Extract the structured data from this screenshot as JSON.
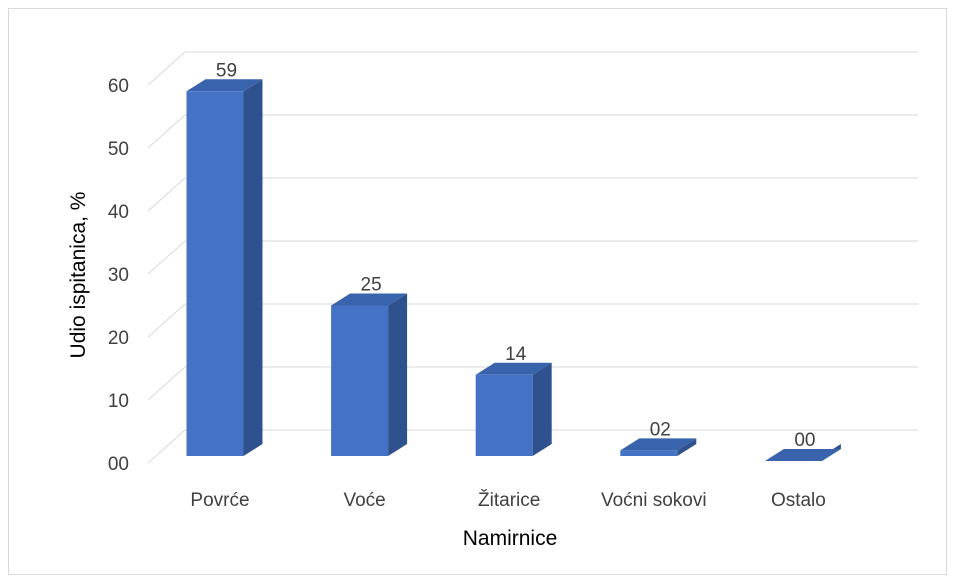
{
  "chart_data": {
    "type": "bar",
    "style": "3d-column",
    "categories": [
      "Povrće",
      "Voće",
      "Žitarice",
      "Voćni sokovi",
      "Ostalo"
    ],
    "values": [
      59,
      25,
      14,
      2,
      0
    ],
    "data_labels": [
      "59",
      "25",
      "14",
      "02",
      "00"
    ],
    "xlabel": "Namirnice",
    "ylabel": "Udio ispitanica, %",
    "ylim": [
      0,
      60
    ],
    "yticks": [
      "00",
      "10",
      "20",
      "30",
      "40",
      "50",
      "60"
    ],
    "grid": true,
    "legend": "none",
    "colors": {
      "front": "#4472c4",
      "side": "#2f528f",
      "top": "#3a63ad",
      "grid": "#d9d9d9",
      "text": "#404040"
    }
  }
}
